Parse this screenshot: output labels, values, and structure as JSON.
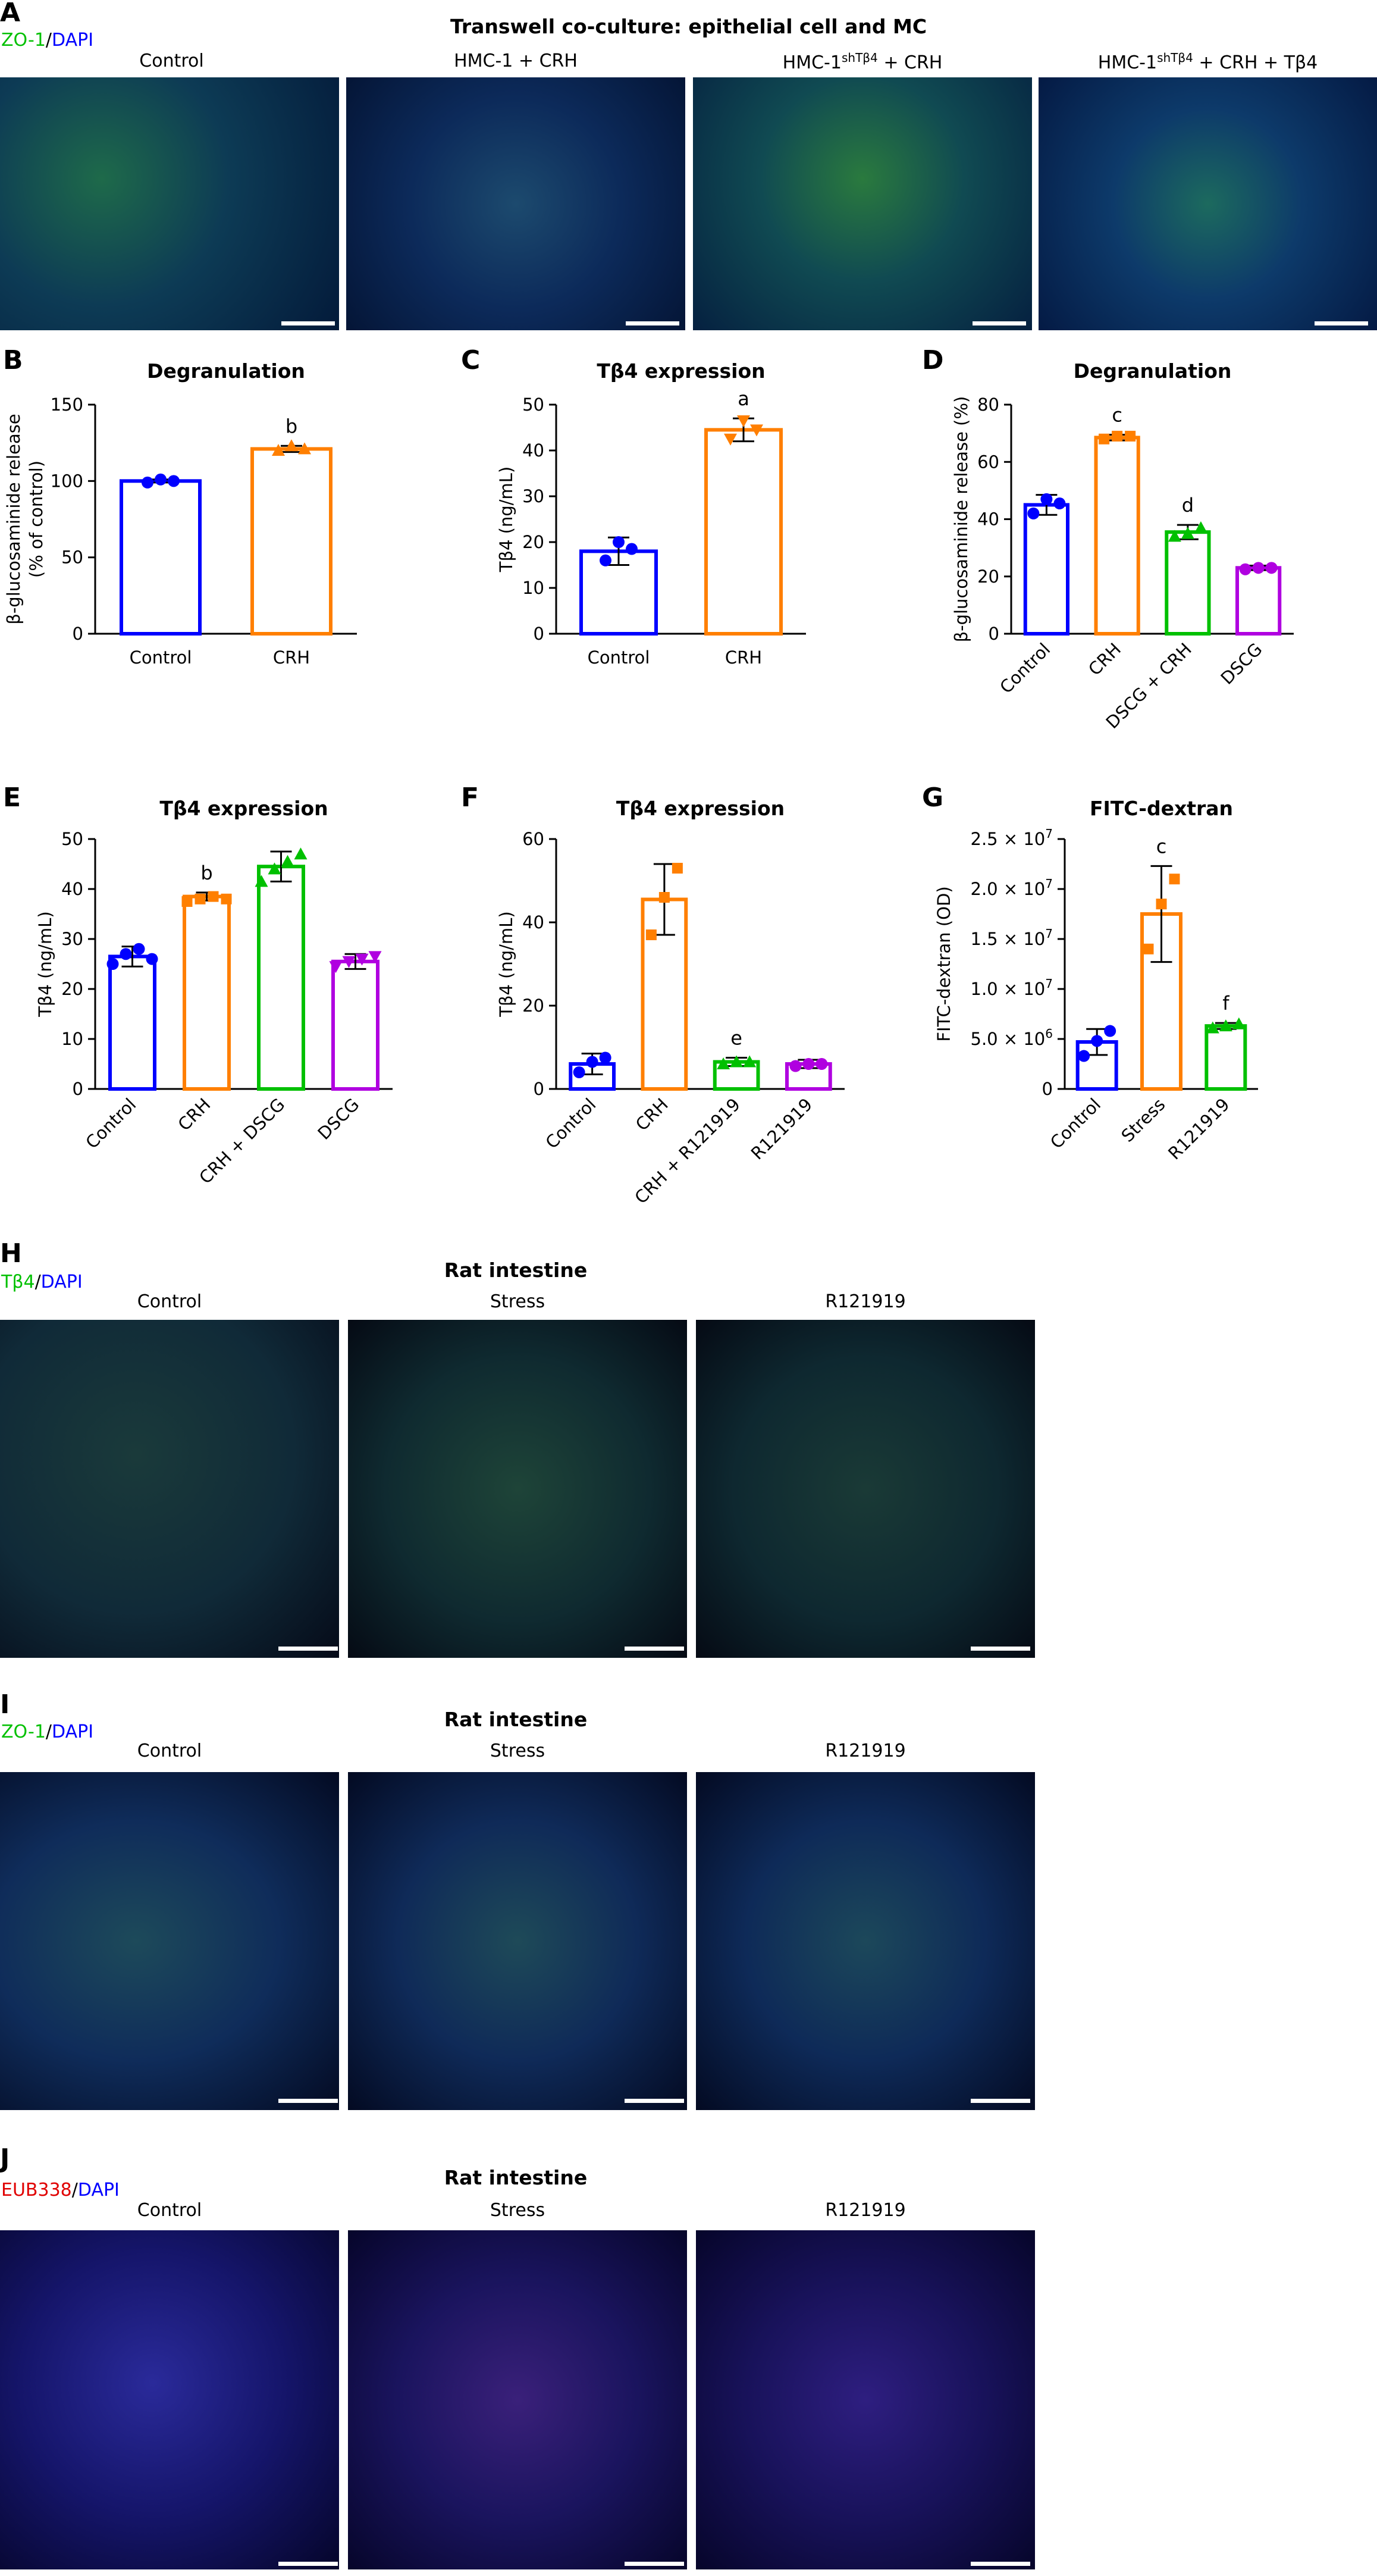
{
  "panel_a": {
    "letter": "A",
    "title": "Transwell co-culture: epithelial cell and MC",
    "stain": [
      {
        "text": "ZO-1",
        "color": "#00c000"
      },
      {
        "text": "/",
        "color": "#000000"
      },
      {
        "text": "DAPI",
        "color": "#0000ff"
      }
    ],
    "labels": [
      "Control",
      "HMC-1 + CRH",
      "HMC-1|shTβ4| + CRH",
      "HMC-1|shTβ4| + CRH + Tβ4"
    ]
  },
  "panel_h": {
    "letter": "H",
    "title": "Rat intestine",
    "stain": [
      {
        "text": "Tβ4",
        "color": "#00c000"
      },
      {
        "text": "/",
        "color": "#000000"
      },
      {
        "text": "DAPI",
        "color": "#0000ff"
      }
    ],
    "labels": [
      "Control",
      "Stress",
      "R121919"
    ]
  },
  "panel_i": {
    "letter": "I",
    "title": "Rat intestine",
    "stain": [
      {
        "text": "ZO-1",
        "color": "#00c000"
      },
      {
        "text": "/",
        "color": "#000000"
      },
      {
        "text": "DAPI",
        "color": "#0000ff"
      }
    ],
    "labels": [
      "Control",
      "Stress",
      "R121919"
    ]
  },
  "panel_j": {
    "letter": "J",
    "title": "Rat intestine",
    "stain": [
      {
        "text": "EUB338",
        "color": "#e00000"
      },
      {
        "text": "/",
        "color": "#000000"
      },
      {
        "text": "DAPI",
        "color": "#0000ff"
      }
    ],
    "labels": [
      "Control",
      "Stress",
      "R121919"
    ]
  },
  "chart_data": [
    {
      "letter": "B",
      "type": "bar",
      "title": "Degranulation",
      "ylabel": "β-glucosaminide release|(% of control)",
      "ylim": [
        0,
        150
      ],
      "yticks": [
        "0",
        "50",
        "100",
        "150"
      ],
      "categories": [
        "Control",
        "CRH"
      ],
      "values": [
        100,
        121
      ],
      "errors": [
        1,
        2
      ],
      "points": [
        [
          99,
          101,
          100
        ],
        [
          120,
          123,
          121
        ]
      ],
      "markers": [
        "circle",
        "triangle"
      ],
      "colors": [
        "#0000ff",
        "#ff7f00"
      ],
      "annotations": [
        "",
        "b"
      ]
    },
    {
      "letter": "C",
      "type": "bar",
      "title": "Tβ4 expression",
      "ylabel": "Tβ4 (ng/mL)",
      "ylim": [
        0,
        50
      ],
      "yticks": [
        "0",
        "10",
        "20",
        "30",
        "40",
        "50"
      ],
      "categories": [
        "Control",
        "CRH"
      ],
      "values": [
        18,
        44.5
      ],
      "errors": [
        3,
        2.5
      ],
      "points": [
        [
          16,
          20,
          18.5
        ],
        [
          42.5,
          46.5,
          44.5
        ]
      ],
      "markers": [
        "circle",
        "triangle-down"
      ],
      "colors": [
        "#0000ff",
        "#ff7f00"
      ],
      "annotations": [
        "",
        "a"
      ]
    },
    {
      "letter": "D",
      "type": "bar",
      "title": "Degranulation",
      "ylabel": "β-glucosaminide release (%)",
      "ylim": [
        0,
        80
      ],
      "yticks": [
        "0",
        "20",
        "40",
        "60",
        "80"
      ],
      "categories": [
        "Control",
        "CRH",
        "DSCG + CRH",
        "DSCG"
      ],
      "values": [
        45,
        68.5,
        35.5,
        23
      ],
      "errors": [
        3.5,
        1,
        2.5,
        0.8
      ],
      "points": [
        [
          42,
          47,
          45.5
        ],
        [
          68,
          69,
          69
        ],
        [
          34,
          35,
          37
        ],
        [
          22.5,
          23,
          23
        ]
      ],
      "markers": [
        "circle",
        "square",
        "triangle",
        "circle"
      ],
      "colors": [
        "#0000ff",
        "#ff7f00",
        "#00c000",
        "#b000e0"
      ],
      "annotations": [
        "",
        "c",
        "d",
        ""
      ]
    },
    {
      "letter": "E",
      "type": "bar",
      "title": "Tβ4 expression",
      "ylabel": "Tβ4 (ng/mL)",
      "ylim": [
        0,
        50
      ],
      "yticks": [
        "0",
        "10",
        "20",
        "30",
        "40",
        "50"
      ],
      "categories": [
        "Control",
        "CRH",
        "CRH + DSCG",
        "DSCG"
      ],
      "values": [
        26.5,
        38.5,
        44.5,
        25.5
      ],
      "errors": [
        2,
        0.8,
        3,
        1.5
      ],
      "points": [
        [
          25,
          27,
          28,
          26
        ],
        [
          37.5,
          38,
          38.5,
          38
        ],
        [
          41.5,
          44,
          45.5,
          47
        ],
        [
          24.5,
          25.5,
          26,
          26.5
        ]
      ],
      "markers": [
        "circle",
        "square",
        "triangle",
        "triangle-down"
      ],
      "colors": [
        "#0000ff",
        "#ff7f00",
        "#00c000",
        "#b000e0"
      ],
      "annotations": [
        "",
        "b",
        "",
        ""
      ]
    },
    {
      "letter": "F",
      "type": "bar",
      "title": "Tβ4 expression",
      "ylabel": "Tβ4 (ng/mL)",
      "ylim": [
        0,
        60
      ],
      "yticks": [
        "0",
        "20",
        "40",
        "60"
      ],
      "categories": [
        "Control",
        "CRH",
        "CRH + R121919",
        "R121919"
      ],
      "values": [
        6,
        45.5,
        6.5,
        6
      ],
      "errors": [
        2.5,
        8.5,
        1,
        1
      ],
      "points": [
        [
          4,
          6.5,
          7.5
        ],
        [
          37,
          46,
          53
        ],
        [
          6,
          6.5,
          6.5
        ],
        [
          5.5,
          6,
          6
        ]
      ],
      "markers": [
        "circle",
        "square",
        "triangle",
        "circle"
      ],
      "colors": [
        "#0000ff",
        "#ff7f00",
        "#00c000",
        "#b000e0"
      ],
      "annotations": [
        "",
        "",
        "e",
        ""
      ]
    },
    {
      "letter": "G",
      "type": "bar",
      "title": "FITC-dextran",
      "ylabel": "FITC-dextran (OD)",
      "ylim": [
        0,
        25000000.0
      ],
      "yticks": [
        "0",
        "5.0 × 10|6|",
        "1.0 × 10|7|",
        "1.5 × 10|7|",
        "2.0 × 10|7|",
        "2.5 × 10|7|"
      ],
      "categories": [
        "Control",
        "Stress",
        "R121919"
      ],
      "values": [
        4700000.0,
        17500000.0,
        6300000.0
      ],
      "errors": [
        1300000.0,
        4800000.0,
        300000.0
      ],
      "points": [
        [
          3300000.0,
          4800000.0,
          5800000.0
        ],
        [
          14000000.0,
          18500000.0,
          21000000.0
        ],
        [
          6100000.0,
          6300000.0,
          6500000.0
        ]
      ],
      "markers": [
        "circle",
        "square",
        "triangle"
      ],
      "colors": [
        "#0000ff",
        "#ff7f00",
        "#00c000"
      ],
      "annotations": [
        "",
        "c",
        "f"
      ]
    }
  ]
}
